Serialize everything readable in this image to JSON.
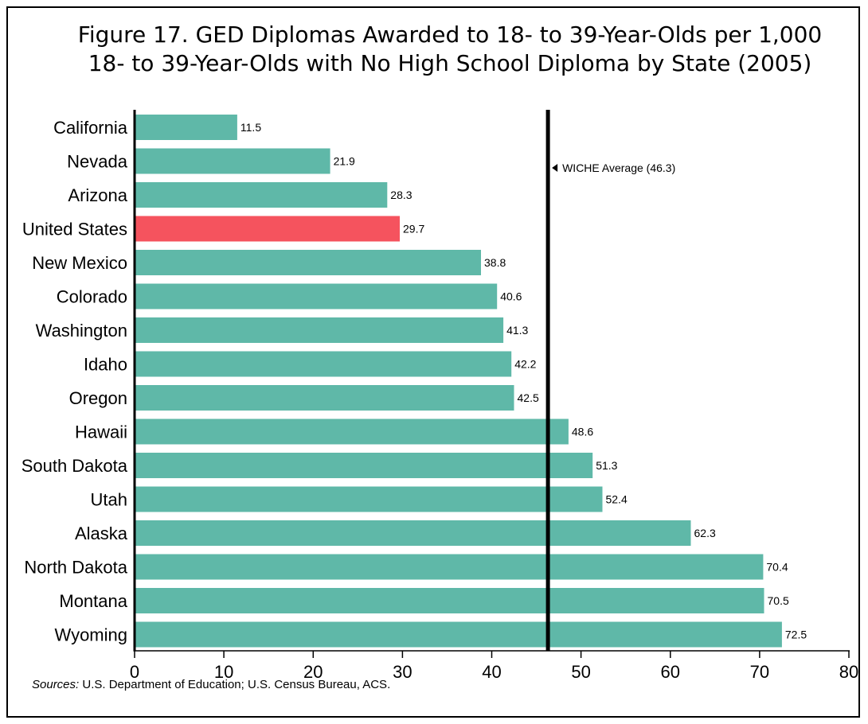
{
  "chart_data": {
    "type": "bar",
    "orientation": "horizontal",
    "title_lines": [
      "Figure 17. GED Diplomas Awarded to 18- to 39-Year-Olds per 1,000",
      "18- to 39-Year-Olds with No High School Diploma by State (2005)"
    ],
    "categories": [
      "California",
      "Nevada",
      "Arizona",
      "United States",
      "New Mexico",
      "Colorado",
      "Washington",
      "Idaho",
      "Oregon",
      "Hawaii",
      "South Dakota",
      "Utah",
      "Alaska",
      "North Dakota",
      "Montana",
      "Wyoming"
    ],
    "values": [
      11.5,
      21.9,
      28.3,
      29.7,
      38.8,
      40.6,
      41.3,
      42.2,
      42.5,
      48.6,
      51.3,
      52.4,
      62.3,
      70.4,
      70.5,
      72.5
    ],
    "value_labels": [
      "11.5",
      "21.9",
      "28.3",
      "29.7",
      "38.8",
      "40.6",
      "41.3",
      "42.2",
      "42.5",
      "48.6",
      "51.3",
      "52.4",
      "62.3",
      "70.4",
      "70.5",
      "72.5"
    ],
    "highlight_category": "United States",
    "xlim": [
      0,
      80
    ],
    "xticks": [
      0,
      10,
      20,
      30,
      40,
      50,
      60,
      70,
      80
    ],
    "xtick_labels": [
      "0",
      "10",
      "20",
      "30",
      "40",
      "50",
      "60",
      "70",
      "80"
    ],
    "xlabel": "",
    "ylabel": "",
    "grid": false,
    "reference_line": {
      "value": 46.3,
      "label": "WICHE Average (46.3)"
    },
    "source_prefix": "Sources:",
    "source_text": "U.S. Department of Education; U.S. Census Bureau, ACS.",
    "colors": {
      "bar": "#5fb8a8",
      "highlight": "#f5535e",
      "reference_line": "#000000",
      "axis": "#000000"
    }
  }
}
